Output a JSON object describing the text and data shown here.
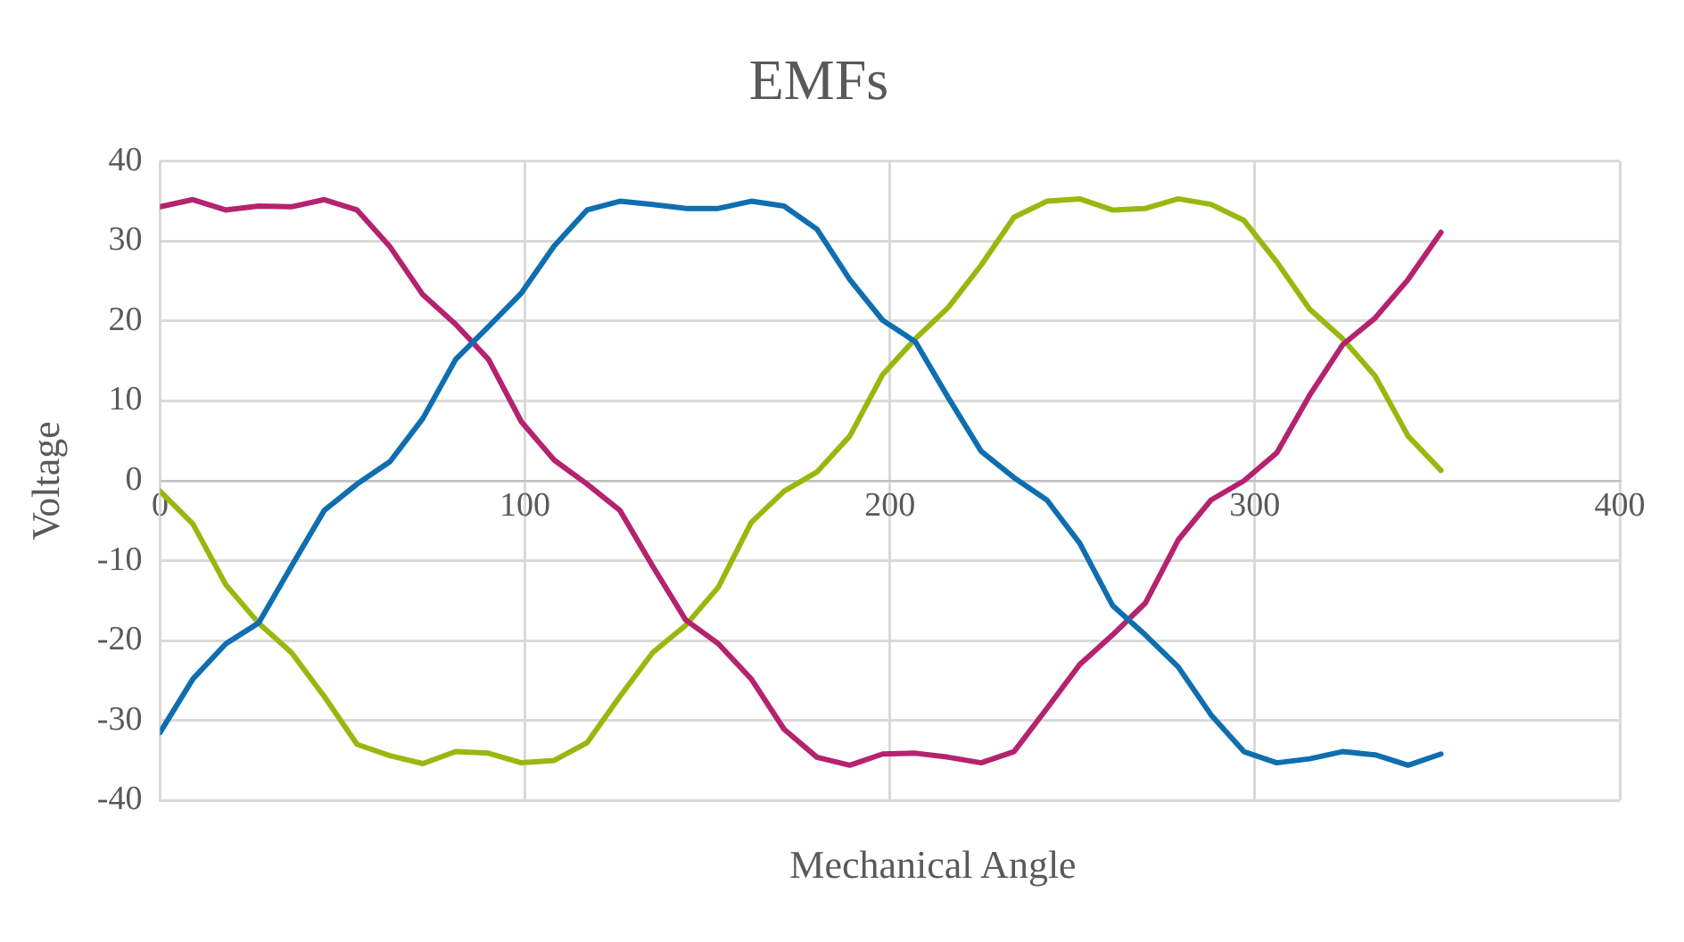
{
  "chart_data": {
    "type": "line",
    "title": "EMFs",
    "xlabel": "Mechanical Angle",
    "ylabel": "Voltage",
    "x": [
      0,
      9,
      18,
      27,
      36,
      45,
      54,
      63,
      72,
      81,
      90,
      99,
      108,
      117,
      126,
      135,
      144,
      153,
      162,
      171,
      180,
      189,
      198,
      207,
      216,
      225,
      234,
      243,
      252,
      261,
      270,
      279,
      288,
      297,
      306,
      315,
      324,
      333,
      342,
      351
    ],
    "xlim": [
      0,
      400
    ],
    "xticks": [
      0,
      100,
      200,
      300,
      400
    ],
    "ylim": [
      -40,
      40
    ],
    "yticks": [
      -40,
      -30,
      -20,
      -10,
      0,
      10,
      20,
      30,
      40
    ],
    "grid": true,
    "legend": false,
    "marker": "none",
    "line_style": "solid",
    "series": [
      {
        "color": "#0e6eb0",
        "values": [
          -31.5,
          -24.8,
          -20.4,
          -17.8,
          -10.7,
          -3.7,
          -0.4,
          2.4,
          7.8,
          15.2,
          19.3,
          23.5,
          29.4,
          33.9,
          35,
          34.6,
          34.1,
          34.1,
          35,
          34.4,
          31.5,
          25.2,
          20.1,
          17.4,
          10.4,
          3.7,
          0.4,
          -2.4,
          -7.8,
          -15.6,
          -19.3,
          -23.3,
          -29.3,
          -33.9,
          -35.3,
          -34.8,
          -33.9,
          -34.3,
          -35.6,
          -34.2
        ]
      },
      {
        "color": "#b5226e",
        "values": [
          34.3,
          35.2,
          33.9,
          34.4,
          34.3,
          35.2,
          33.9,
          29.3,
          23.3,
          19.6,
          15.2,
          7.4,
          2.6,
          -0.4,
          -3.7,
          -10.7,
          -17.4,
          -20.4,
          -24.8,
          -31.1,
          -34.6,
          -35.6,
          -34.2,
          -34.1,
          -34.6,
          -35.3,
          -33.9,
          -28.5,
          -23,
          -19.3,
          -15.3,
          -7.4,
          -2.4,
          0,
          3.5,
          10.7,
          17,
          20.4,
          25.2,
          31.1
        ]
      },
      {
        "color": "#99b80f",
        "values": [
          -1.3,
          -5.4,
          -13,
          -17.8,
          -21.5,
          -27,
          -33,
          -34.4,
          -35.4,
          -33.9,
          -34.1,
          -35.3,
          -35,
          -32.8,
          -27,
          -21.5,
          -18.1,
          -13.3,
          -5.2,
          -1.3,
          1.1,
          5.6,
          13.3,
          17.8,
          21.7,
          27,
          33,
          35,
          35.3,
          33.9,
          34.1,
          35.3,
          34.6,
          32.6,
          27.4,
          21.5,
          17.8,
          13.1,
          5.6,
          1.3
        ]
      }
    ]
  }
}
